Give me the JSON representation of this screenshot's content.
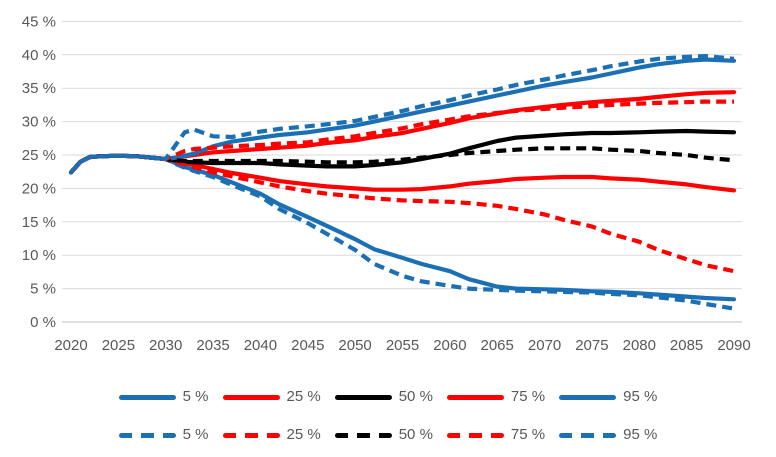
{
  "chart_data": {
    "type": "line",
    "title": "",
    "xlabel": "",
    "ylabel": "",
    "grid": "horizontal",
    "legend_position": "bottom",
    "ylim": [
      0,
      45
    ],
    "xlim": [
      2020,
      2090
    ],
    "y_ticks": [
      {
        "value": 0,
        "label": "0 %"
      },
      {
        "value": 5,
        "label": "5 %"
      },
      {
        "value": 10,
        "label": "10 %"
      },
      {
        "value": 15,
        "label": "15 %"
      },
      {
        "value": 20,
        "label": "20 %"
      },
      {
        "value": 25,
        "label": "25 %"
      },
      {
        "value": 30,
        "label": "30 %"
      },
      {
        "value": 35,
        "label": "35 %"
      },
      {
        "value": 40,
        "label": "40 %"
      },
      {
        "value": 45,
        "label": "45 %"
      }
    ],
    "x_ticks": [
      {
        "value": 2020,
        "label": "2020"
      },
      {
        "value": 2025,
        "label": "2025"
      },
      {
        "value": 2030,
        "label": "2030"
      },
      {
        "value": 2035,
        "label": "2035"
      },
      {
        "value": 2040,
        "label": "2040"
      },
      {
        "value": 2045,
        "label": "2045"
      },
      {
        "value": 2050,
        "label": "2050"
      },
      {
        "value": 2055,
        "label": "2055"
      },
      {
        "value": 2060,
        "label": "2060"
      },
      {
        "value": 2065,
        "label": "2065"
      },
      {
        "value": 2070,
        "label": "2070"
      },
      {
        "value": 2075,
        "label": "2075"
      },
      {
        "value": 2080,
        "label": "2080"
      },
      {
        "value": 2085,
        "label": "2085"
      },
      {
        "value": 2090,
        "label": "2090"
      }
    ],
    "x": [
      2020,
      2021,
      2022,
      2023,
      2025,
      2027,
      2030,
      2031,
      2032,
      2033,
      2035,
      2037,
      2040,
      2042,
      2045,
      2047,
      2050,
      2052,
      2055,
      2057,
      2060,
      2062,
      2065,
      2067,
      2070,
      2072,
      2075,
      2077,
      2080,
      2082,
      2085,
      2087,
      2090
    ],
    "series": [
      {
        "id": "5pct-solid",
        "name": "5 %",
        "variant": "solid",
        "color": "#1A6FB5",
        "values": [
          22.4,
          24.0,
          24.7,
          24.8,
          24.9,
          24.8,
          24.4,
          23.8,
          23.2,
          22.8,
          22.0,
          20.9,
          19.2,
          17.6,
          15.7,
          14.4,
          12.4,
          10.9,
          9.6,
          8.7,
          7.6,
          6.4,
          5.3,
          5.0,
          4.9,
          4.8,
          4.6,
          4.5,
          4.3,
          4.1,
          3.8,
          3.6,
          3.4
        ]
      },
      {
        "id": "25pct-solid",
        "name": "25 %",
        "variant": "solid",
        "color": "#FF0000",
        "values": [
          22.4,
          24.0,
          24.7,
          24.8,
          24.9,
          24.8,
          24.4,
          24.1,
          23.8,
          23.5,
          22.9,
          22.3,
          21.6,
          21.1,
          20.6,
          20.3,
          20.0,
          19.8,
          19.8,
          19.9,
          20.3,
          20.7,
          21.1,
          21.4,
          21.6,
          21.7,
          21.7,
          21.5,
          21.3,
          21.0,
          20.6,
          20.2,
          19.7
        ]
      },
      {
        "id": "50pct-solid",
        "name": "50 %",
        "variant": "solid",
        "color": "#000000",
        "values": [
          22.4,
          24.0,
          24.7,
          24.8,
          24.9,
          24.8,
          24.4,
          24.2,
          24.0,
          23.9,
          23.8,
          23.8,
          23.8,
          23.6,
          23.4,
          23.3,
          23.3,
          23.5,
          23.9,
          24.4,
          25.2,
          26.0,
          27.1,
          27.6,
          27.9,
          28.1,
          28.3,
          28.3,
          28.4,
          28.5,
          28.6,
          28.5,
          28.4
        ]
      },
      {
        "id": "75pct-solid",
        "name": "75 %",
        "variant": "solid",
        "color": "#FF0000",
        "values": [
          22.4,
          24.0,
          24.7,
          24.8,
          24.9,
          24.8,
          24.4,
          24.6,
          24.8,
          25.0,
          25.4,
          25.6,
          25.9,
          26.1,
          26.4,
          26.8,
          27.2,
          27.7,
          28.3,
          28.9,
          29.8,
          30.5,
          31.2,
          31.7,
          32.2,
          32.5,
          32.9,
          33.1,
          33.4,
          33.7,
          34.1,
          34.3,
          34.4
        ]
      },
      {
        "id": "95pct-solid",
        "name": "95 %",
        "variant": "solid",
        "color": "#1A6FB5",
        "values": [
          22.4,
          24.0,
          24.7,
          24.8,
          24.9,
          24.8,
          24.4,
          24.6,
          24.9,
          25.2,
          26.3,
          27.0,
          27.6,
          28.0,
          28.4,
          28.8,
          29.4,
          30.0,
          30.9,
          31.5,
          32.4,
          33.0,
          33.9,
          34.5,
          35.4,
          35.9,
          36.6,
          37.2,
          38.1,
          38.6,
          39.1,
          39.3,
          39.1
        ]
      },
      {
        "id": "5pct-dashed",
        "name": "5 %",
        "variant": "dashed",
        "color": "#1A6FB5",
        "values": [
          22.4,
          24.0,
          24.7,
          24.8,
          24.9,
          24.8,
          24.4,
          23.7,
          23.1,
          22.6,
          21.7,
          20.5,
          18.8,
          16.9,
          14.8,
          13.2,
          10.8,
          8.7,
          6.9,
          6.1,
          5.4,
          5.0,
          4.8,
          4.7,
          4.6,
          4.5,
          4.4,
          4.2,
          4.0,
          3.7,
          3.2,
          2.7,
          2.0
        ]
      },
      {
        "id": "25pct-dashed",
        "name": "25 %",
        "variant": "dashed",
        "color": "#FF0000",
        "values": [
          22.4,
          24.0,
          24.7,
          24.8,
          24.9,
          24.8,
          24.4,
          24.0,
          23.6,
          23.2,
          22.4,
          21.8,
          20.9,
          20.3,
          19.6,
          19.2,
          18.8,
          18.5,
          18.2,
          18.1,
          18.0,
          17.8,
          17.4,
          16.9,
          16.1,
          15.3,
          14.3,
          13.2,
          12.0,
          10.8,
          9.4,
          8.5,
          7.6
        ]
      },
      {
        "id": "50pct-dashed",
        "name": "50 %",
        "variant": "dashed",
        "color": "#000000",
        "values": [
          22.4,
          24.0,
          24.7,
          24.8,
          24.9,
          24.8,
          24.4,
          24.2,
          24.1,
          24.1,
          24.1,
          24.1,
          24.1,
          24.1,
          24.0,
          23.9,
          23.9,
          24.0,
          24.3,
          24.6,
          25.0,
          25.3,
          25.6,
          25.8,
          26.0,
          26.0,
          26.0,
          25.8,
          25.6,
          25.3,
          25.0,
          24.6,
          24.2
        ]
      },
      {
        "id": "75pct-dashed",
        "name": "75 %",
        "variant": "dashed",
        "color": "#FF0000",
        "values": [
          22.4,
          24.0,
          24.7,
          24.8,
          24.9,
          24.8,
          24.4,
          25.0,
          25.6,
          25.9,
          26.1,
          26.3,
          26.5,
          26.7,
          26.9,
          27.3,
          27.8,
          28.3,
          29.0,
          29.6,
          30.3,
          30.8,
          31.3,
          31.6,
          31.9,
          32.1,
          32.3,
          32.5,
          32.7,
          32.8,
          32.9,
          33.0,
          33.0
        ]
      },
      {
        "id": "95pct-dashed",
        "name": "95 %",
        "variant": "dashed",
        "color": "#1A6FB5",
        "values": [
          22.4,
          24.0,
          24.7,
          24.8,
          24.9,
          24.8,
          24.4,
          26.4,
          28.4,
          28.8,
          27.8,
          27.7,
          28.5,
          28.9,
          29.3,
          29.6,
          30.1,
          30.7,
          31.6,
          32.3,
          33.2,
          33.9,
          34.8,
          35.5,
          36.3,
          36.9,
          37.7,
          38.3,
          39.0,
          39.4,
          39.7,
          39.8,
          39.4
        ]
      }
    ]
  },
  "legend": {
    "rows": [
      {
        "style": "solid",
        "items": [
          {
            "label": "5 %",
            "color": "#1A6FB5"
          },
          {
            "label": "25 %",
            "color": "#FF0000"
          },
          {
            "label": "50 %",
            "color": "#000000"
          },
          {
            "label": "75 %",
            "color": "#FF0000"
          },
          {
            "label": "95 %",
            "color": "#1A6FB5"
          }
        ]
      },
      {
        "style": "dashed",
        "items": [
          {
            "label": "5 %",
            "color": "#1A6FB5"
          },
          {
            "label": "25 %",
            "color": "#FF0000"
          },
          {
            "label": "50 %",
            "color": "#000000"
          },
          {
            "label": "75 %",
            "color": "#FF0000"
          },
          {
            "label": "95 %",
            "color": "#1A6FB5"
          }
        ]
      }
    ]
  },
  "colors": {
    "blue": "#1A6FB5",
    "red": "#FF0000",
    "black": "#000000",
    "gridline": "#D9D9D9",
    "axis_line": "#BFBFBF",
    "tick_text": "#595959"
  }
}
